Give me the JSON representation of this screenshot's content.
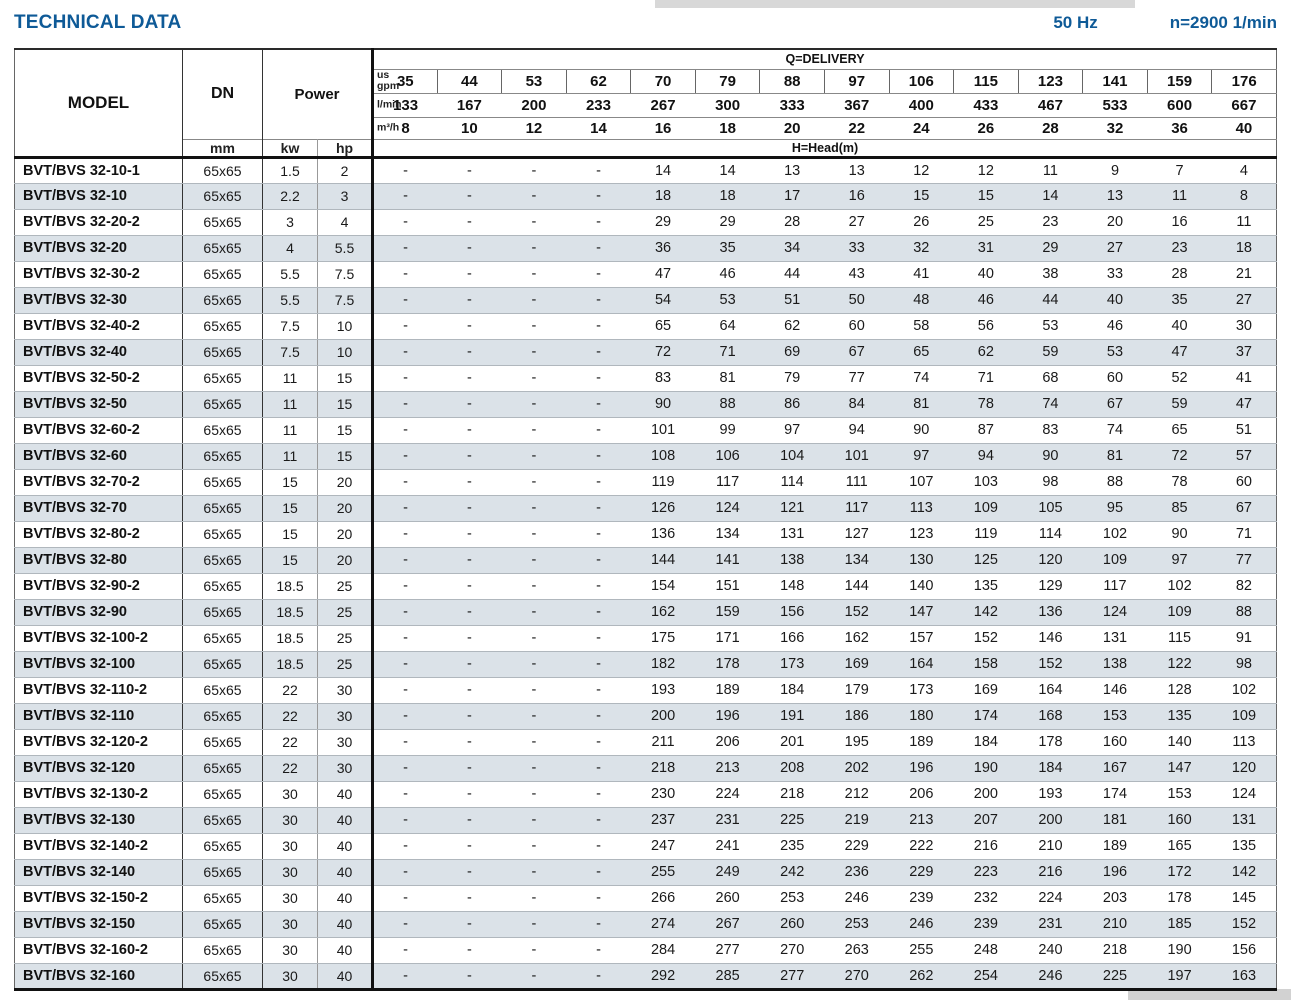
{
  "page": {
    "title": "TECHNICAL DATA",
    "frequency": "50 Hz",
    "speed": "n=2900 1/min"
  },
  "table": {
    "headers": {
      "model": "MODEL",
      "dn": "DN",
      "dn_unit": "mm",
      "power": "Power",
      "kw": "kw",
      "hp": "hp",
      "delivery": "Q=DELIVERY",
      "head": "H=Head(m)",
      "flow_units": [
        "us gpm",
        "l/min",
        "m³/h"
      ],
      "gpm": [
        "35",
        "44",
        "53",
        "62",
        "70",
        "79",
        "88",
        "97",
        "106",
        "115",
        "123",
        "141",
        "159",
        "176"
      ],
      "lmin": [
        "133",
        "167",
        "200",
        "233",
        "267",
        "300",
        "333",
        "367",
        "400",
        "433",
        "467",
        "533",
        "600",
        "667"
      ],
      "m3h": [
        "8",
        "10",
        "12",
        "14",
        "16",
        "18",
        "20",
        "22",
        "24",
        "26",
        "28",
        "32",
        "36",
        "40"
      ]
    },
    "rows": [
      {
        "model": "BVT/BVS 32-10-1",
        "dn": "65x65",
        "kw": "1.5",
        "hp": "2",
        "heads": [
          "-",
          "-",
          "-",
          "-",
          "14",
          "14",
          "13",
          "13",
          "12",
          "12",
          "11",
          "9",
          "7",
          "4"
        ]
      },
      {
        "model": "BVT/BVS 32-10",
        "dn": "65x65",
        "kw": "2.2",
        "hp": "3",
        "heads": [
          "-",
          "-",
          "-",
          "-",
          "18",
          "18",
          "17",
          "16",
          "15",
          "15",
          "14",
          "13",
          "11",
          "8"
        ]
      },
      {
        "model": "BVT/BVS 32-20-2",
        "dn": "65x65",
        "kw": "3",
        "hp": "4",
        "heads": [
          "-",
          "-",
          "-",
          "-",
          "29",
          "29",
          "28",
          "27",
          "26",
          "25",
          "23",
          "20",
          "16",
          "11"
        ]
      },
      {
        "model": "BVT/BVS 32-20",
        "dn": "65x65",
        "kw": "4",
        "hp": "5.5",
        "heads": [
          "-",
          "-",
          "-",
          "-",
          "36",
          "35",
          "34",
          "33",
          "32",
          "31",
          "29",
          "27",
          "23",
          "18"
        ]
      },
      {
        "model": "BVT/BVS 32-30-2",
        "dn": "65x65",
        "kw": "5.5",
        "hp": "7.5",
        "heads": [
          "-",
          "-",
          "-",
          "-",
          "47",
          "46",
          "44",
          "43",
          "41",
          "40",
          "38",
          "33",
          "28",
          "21"
        ]
      },
      {
        "model": "BVT/BVS 32-30",
        "dn": "65x65",
        "kw": "5.5",
        "hp": "7.5",
        "heads": [
          "-",
          "-",
          "-",
          "-",
          "54",
          "53",
          "51",
          "50",
          "48",
          "46",
          "44",
          "40",
          "35",
          "27"
        ]
      },
      {
        "model": "BVT/BVS 32-40-2",
        "dn": "65x65",
        "kw": "7.5",
        "hp": "10",
        "heads": [
          "-",
          "-",
          "-",
          "-",
          "65",
          "64",
          "62",
          "60",
          "58",
          "56",
          "53",
          "46",
          "40",
          "30"
        ]
      },
      {
        "model": "BVT/BVS 32-40",
        "dn": "65x65",
        "kw": "7.5",
        "hp": "10",
        "heads": [
          "-",
          "-",
          "-",
          "-",
          "72",
          "71",
          "69",
          "67",
          "65",
          "62",
          "59",
          "53",
          "47",
          "37"
        ]
      },
      {
        "model": "BVT/BVS 32-50-2",
        "dn": "65x65",
        "kw": "11",
        "hp": "15",
        "heads": [
          "-",
          "-",
          "-",
          "-",
          "83",
          "81",
          "79",
          "77",
          "74",
          "71",
          "68",
          "60",
          "52",
          "41"
        ]
      },
      {
        "model": "BVT/BVS 32-50",
        "dn": "65x65",
        "kw": "11",
        "hp": "15",
        "heads": [
          "-",
          "-",
          "-",
          "-",
          "90",
          "88",
          "86",
          "84",
          "81",
          "78",
          "74",
          "67",
          "59",
          "47"
        ]
      },
      {
        "model": "BVT/BVS 32-60-2",
        "dn": "65x65",
        "kw": "11",
        "hp": "15",
        "heads": [
          "-",
          "-",
          "-",
          "-",
          "101",
          "99",
          "97",
          "94",
          "90",
          "87",
          "83",
          "74",
          "65",
          "51"
        ]
      },
      {
        "model": "BVT/BVS 32-60",
        "dn": "65x65",
        "kw": "11",
        "hp": "15",
        "heads": [
          "-",
          "-",
          "-",
          "-",
          "108",
          "106",
          "104",
          "101",
          "97",
          "94",
          "90",
          "81",
          "72",
          "57"
        ]
      },
      {
        "model": "BVT/BVS 32-70-2",
        "dn": "65x65",
        "kw": "15",
        "hp": "20",
        "heads": [
          "-",
          "-",
          "-",
          "-",
          "119",
          "117",
          "114",
          "111",
          "107",
          "103",
          "98",
          "88",
          "78",
          "60"
        ]
      },
      {
        "model": "BVT/BVS 32-70",
        "dn": "65x65",
        "kw": "15",
        "hp": "20",
        "heads": [
          "-",
          "-",
          "-",
          "-",
          "126",
          "124",
          "121",
          "117",
          "113",
          "109",
          "105",
          "95",
          "85",
          "67"
        ]
      },
      {
        "model": "BVT/BVS 32-80-2",
        "dn": "65x65",
        "kw": "15",
        "hp": "20",
        "heads": [
          "-",
          "-",
          "-",
          "-",
          "136",
          "134",
          "131",
          "127",
          "123",
          "119",
          "114",
          "102",
          "90",
          "71"
        ]
      },
      {
        "model": "BVT/BVS 32-80",
        "dn": "65x65",
        "kw": "15",
        "hp": "20",
        "heads": [
          "-",
          "-",
          "-",
          "-",
          "144",
          "141",
          "138",
          "134",
          "130",
          "125",
          "120",
          "109",
          "97",
          "77"
        ]
      },
      {
        "model": "BVT/BVS 32-90-2",
        "dn": "65x65",
        "kw": "18.5",
        "hp": "25",
        "heads": [
          "-",
          "-",
          "-",
          "-",
          "154",
          "151",
          "148",
          "144",
          "140",
          "135",
          "129",
          "117",
          "102",
          "82"
        ]
      },
      {
        "model": "BVT/BVS 32-90",
        "dn": "65x65",
        "kw": "18.5",
        "hp": "25",
        "heads": [
          "-",
          "-",
          "-",
          "-",
          "162",
          "159",
          "156",
          "152",
          "147",
          "142",
          "136",
          "124",
          "109",
          "88"
        ]
      },
      {
        "model": "BVT/BVS 32-100-2",
        "dn": "65x65",
        "kw": "18.5",
        "hp": "25",
        "heads": [
          "-",
          "-",
          "-",
          "-",
          "175",
          "171",
          "166",
          "162",
          "157",
          "152",
          "146",
          "131",
          "115",
          "91"
        ]
      },
      {
        "model": "BVT/BVS 32-100",
        "dn": "65x65",
        "kw": "18.5",
        "hp": "25",
        "heads": [
          "-",
          "-",
          "-",
          "-",
          "182",
          "178",
          "173",
          "169",
          "164",
          "158",
          "152",
          "138",
          "122",
          "98"
        ]
      },
      {
        "model": "BVT/BVS 32-110-2",
        "dn": "65x65",
        "kw": "22",
        "hp": "30",
        "heads": [
          "-",
          "-",
          "-",
          "-",
          "193",
          "189",
          "184",
          "179",
          "173",
          "169",
          "164",
          "146",
          "128",
          "102"
        ]
      },
      {
        "model": "BVT/BVS 32-110",
        "dn": "65x65",
        "kw": "22",
        "hp": "30",
        "heads": [
          "-",
          "-",
          "-",
          "-",
          "200",
          "196",
          "191",
          "186",
          "180",
          "174",
          "168",
          "153",
          "135",
          "109"
        ]
      },
      {
        "model": "BVT/BVS 32-120-2",
        "dn": "65x65",
        "kw": "22",
        "hp": "30",
        "heads": [
          "-",
          "-",
          "-",
          "-",
          "211",
          "206",
          "201",
          "195",
          "189",
          "184",
          "178",
          "160",
          "140",
          "113"
        ]
      },
      {
        "model": "BVT/BVS 32-120",
        "dn": "65x65",
        "kw": "22",
        "hp": "30",
        "heads": [
          "-",
          "-",
          "-",
          "-",
          "218",
          "213",
          "208",
          "202",
          "196",
          "190",
          "184",
          "167",
          "147",
          "120"
        ]
      },
      {
        "model": "BVT/BVS 32-130-2",
        "dn": "65x65",
        "kw": "30",
        "hp": "40",
        "heads": [
          "-",
          "-",
          "-",
          "-",
          "230",
          "224",
          "218",
          "212",
          "206",
          "200",
          "193",
          "174",
          "153",
          "124"
        ]
      },
      {
        "model": "BVT/BVS 32-130",
        "dn": "65x65",
        "kw": "30",
        "hp": "40",
        "heads": [
          "-",
          "-",
          "-",
          "-",
          "237",
          "231",
          "225",
          "219",
          "213",
          "207",
          "200",
          "181",
          "160",
          "131"
        ]
      },
      {
        "model": "BVT/BVS 32-140-2",
        "dn": "65x65",
        "kw": "30",
        "hp": "40",
        "heads": [
          "-",
          "-",
          "-",
          "-",
          "247",
          "241",
          "235",
          "229",
          "222",
          "216",
          "210",
          "189",
          "165",
          "135"
        ]
      },
      {
        "model": "BVT/BVS 32-140",
        "dn": "65x65",
        "kw": "30",
        "hp": "40",
        "heads": [
          "-",
          "-",
          "-",
          "-",
          "255",
          "249",
          "242",
          "236",
          "229",
          "223",
          "216",
          "196",
          "172",
          "142"
        ]
      },
      {
        "model": "BVT/BVS 32-150-2",
        "dn": "65x65",
        "kw": "30",
        "hp": "40",
        "heads": [
          "-",
          "-",
          "-",
          "-",
          "266",
          "260",
          "253",
          "246",
          "239",
          "232",
          "224",
          "203",
          "178",
          "145"
        ]
      },
      {
        "model": "BVT/BVS 32-150",
        "dn": "65x65",
        "kw": "30",
        "hp": "40",
        "heads": [
          "-",
          "-",
          "-",
          "-",
          "274",
          "267",
          "260",
          "253",
          "246",
          "239",
          "231",
          "210",
          "185",
          "152"
        ]
      },
      {
        "model": "BVT/BVS 32-160-2",
        "dn": "65x65",
        "kw": "30",
        "hp": "40",
        "heads": [
          "-",
          "-",
          "-",
          "-",
          "284",
          "277",
          "270",
          "263",
          "255",
          "248",
          "240",
          "218",
          "190",
          "156"
        ]
      },
      {
        "model": "BVT/BVS 32-160",
        "dn": "65x65",
        "kw": "30",
        "hp": "40",
        "heads": [
          "-",
          "-",
          "-",
          "-",
          "292",
          "285",
          "277",
          "270",
          "262",
          "254",
          "246",
          "225",
          "197",
          "163"
        ]
      }
    ]
  }
}
